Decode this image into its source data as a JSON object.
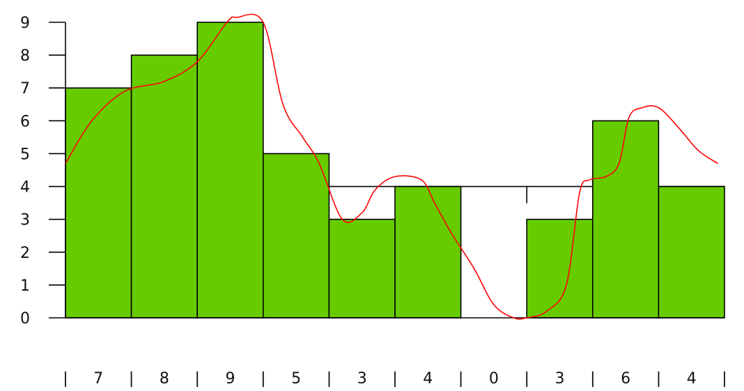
{
  "chart_data": {
    "type": "bar",
    "categories": [
      "7",
      "8",
      "9",
      "5",
      "3",
      "4",
      "0",
      "3",
      "6",
      "4"
    ],
    "values": [
      7,
      8,
      9,
      5,
      3,
      4,
      0,
      3,
      6,
      4
    ],
    "ylim": [
      0,
      9
    ],
    "yticks": [
      "0",
      "1",
      "2",
      "3",
      "4",
      "5",
      "6",
      "7",
      "8",
      "9"
    ],
    "reference_line": 4,
    "separator_glyph": "|",
    "grid": false,
    "colors": {
      "bar": "#66cc00",
      "bar_edge": "#000000",
      "curve": "#ff0000",
      "axis": "#000000"
    },
    "curve": {
      "x": [
        0.0,
        0.4,
        0.9,
        1.5,
        2.0,
        2.45,
        2.6,
        3.0,
        3.3,
        3.6,
        3.85,
        4.2,
        4.5,
        4.7,
        5.0,
        5.4,
        5.6,
        5.85,
        6.2,
        6.5,
        6.8,
        7.0,
        7.3,
        7.6,
        7.8,
        7.95,
        8.2,
        8.4,
        8.55,
        8.75,
        9.0,
        9.3,
        9.6,
        9.9
      ],
      "y": [
        4.7,
        6.0,
        6.9,
        7.2,
        7.8,
        9.0,
        9.15,
        9.0,
        6.5,
        5.5,
        4.7,
        3.0,
        3.2,
        3.9,
        4.3,
        4.2,
        3.5,
        2.6,
        1.5,
        0.4,
        0.0,
        0.0,
        0.2,
        1.0,
        3.8,
        4.2,
        4.3,
        4.7,
        6.1,
        6.4,
        6.4,
        5.8,
        5.1,
        4.7
      ]
    }
  }
}
